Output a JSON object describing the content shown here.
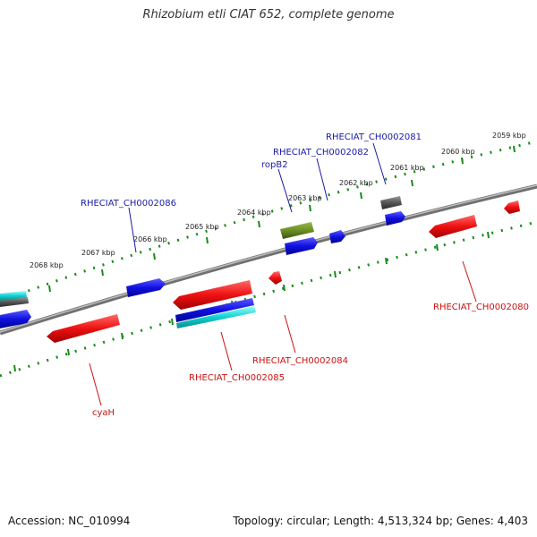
{
  "title": "Rhizobium etli CIAT 652, complete genome",
  "footer": {
    "accession": "Accession: NC_010994",
    "summary": "Topology: circular; Length: 4,513,324 bp; Genes: 4,403"
  },
  "scale_labels": [
    "2059 kbp",
    "2060 kbp",
    "2061 kbp",
    "2062 kbp",
    "2063 kbp",
    "2064 kbp",
    "2065 kbp",
    "2066 kbp",
    "2067 kbp",
    "2068 kbp"
  ],
  "gene_labels": {
    "rheciat_ch0002081": "RHECIAT_CH0002081",
    "rheciat_ch0002082": "RHECIAT_CH0002082",
    "ropb2": "ropB2",
    "rheciat_ch0002086": "RHECIAT_CH0002086",
    "rheciat_ch0002080": "RHECIAT_CH0002080",
    "rheciat_ch0002084": "RHECIAT_CH0002084",
    "rheciat_ch0002085": "RHECIAT_CH0002085",
    "cyah": "cyaH"
  },
  "colors": {
    "forward_gene": "#1010e0",
    "reverse_gene": "#ee1111",
    "rna_gene": "#6b8e23",
    "pseudo_gene": "#555555",
    "misc_gene": "#10d0d0",
    "scale_ticks": "#1a8a1a",
    "backbone": "#808080"
  }
}
